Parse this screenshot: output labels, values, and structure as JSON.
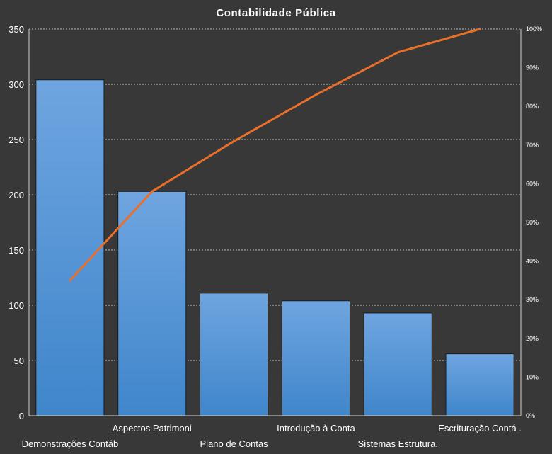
{
  "chart_data": {
    "type": "bar",
    "title": "Contabilidade  Pública",
    "categories": [
      "Demonstrações Contáb",
      "Aspectos Patrimoni",
      "Plano de Contas",
      "Introdução  à Conta",
      "Sistemas Estrutura.",
      "Escrituração Contá ."
    ],
    "series": [
      {
        "type": "bar",
        "values": [
          304,
          203,
          111,
          104,
          93,
          56
        ]
      },
      {
        "type": "line",
        "axis": "right",
        "values": [
          0.35,
          0.58,
          0.71,
          0.83,
          0.94,
          1.0
        ]
      }
    ],
    "ylim": [
      0,
      350
    ],
    "yticks": [
      "0",
      "50",
      "100",
      "150",
      "200",
      "250",
      "300",
      "350"
    ],
    "y2lim": [
      0,
      1
    ],
    "y2ticks": [
      "0%",
      "10%",
      "20%",
      "30%",
      "40%",
      "50%",
      "60%",
      "70%",
      "80%",
      "90%",
      "100%"
    ],
    "grid": true,
    "legend": "none",
    "colors": {
      "background": "#383838",
      "bar_top": "#6fa5e0",
      "bar_bottom": "#3f86cb",
      "line": "#e8702a"
    }
  }
}
